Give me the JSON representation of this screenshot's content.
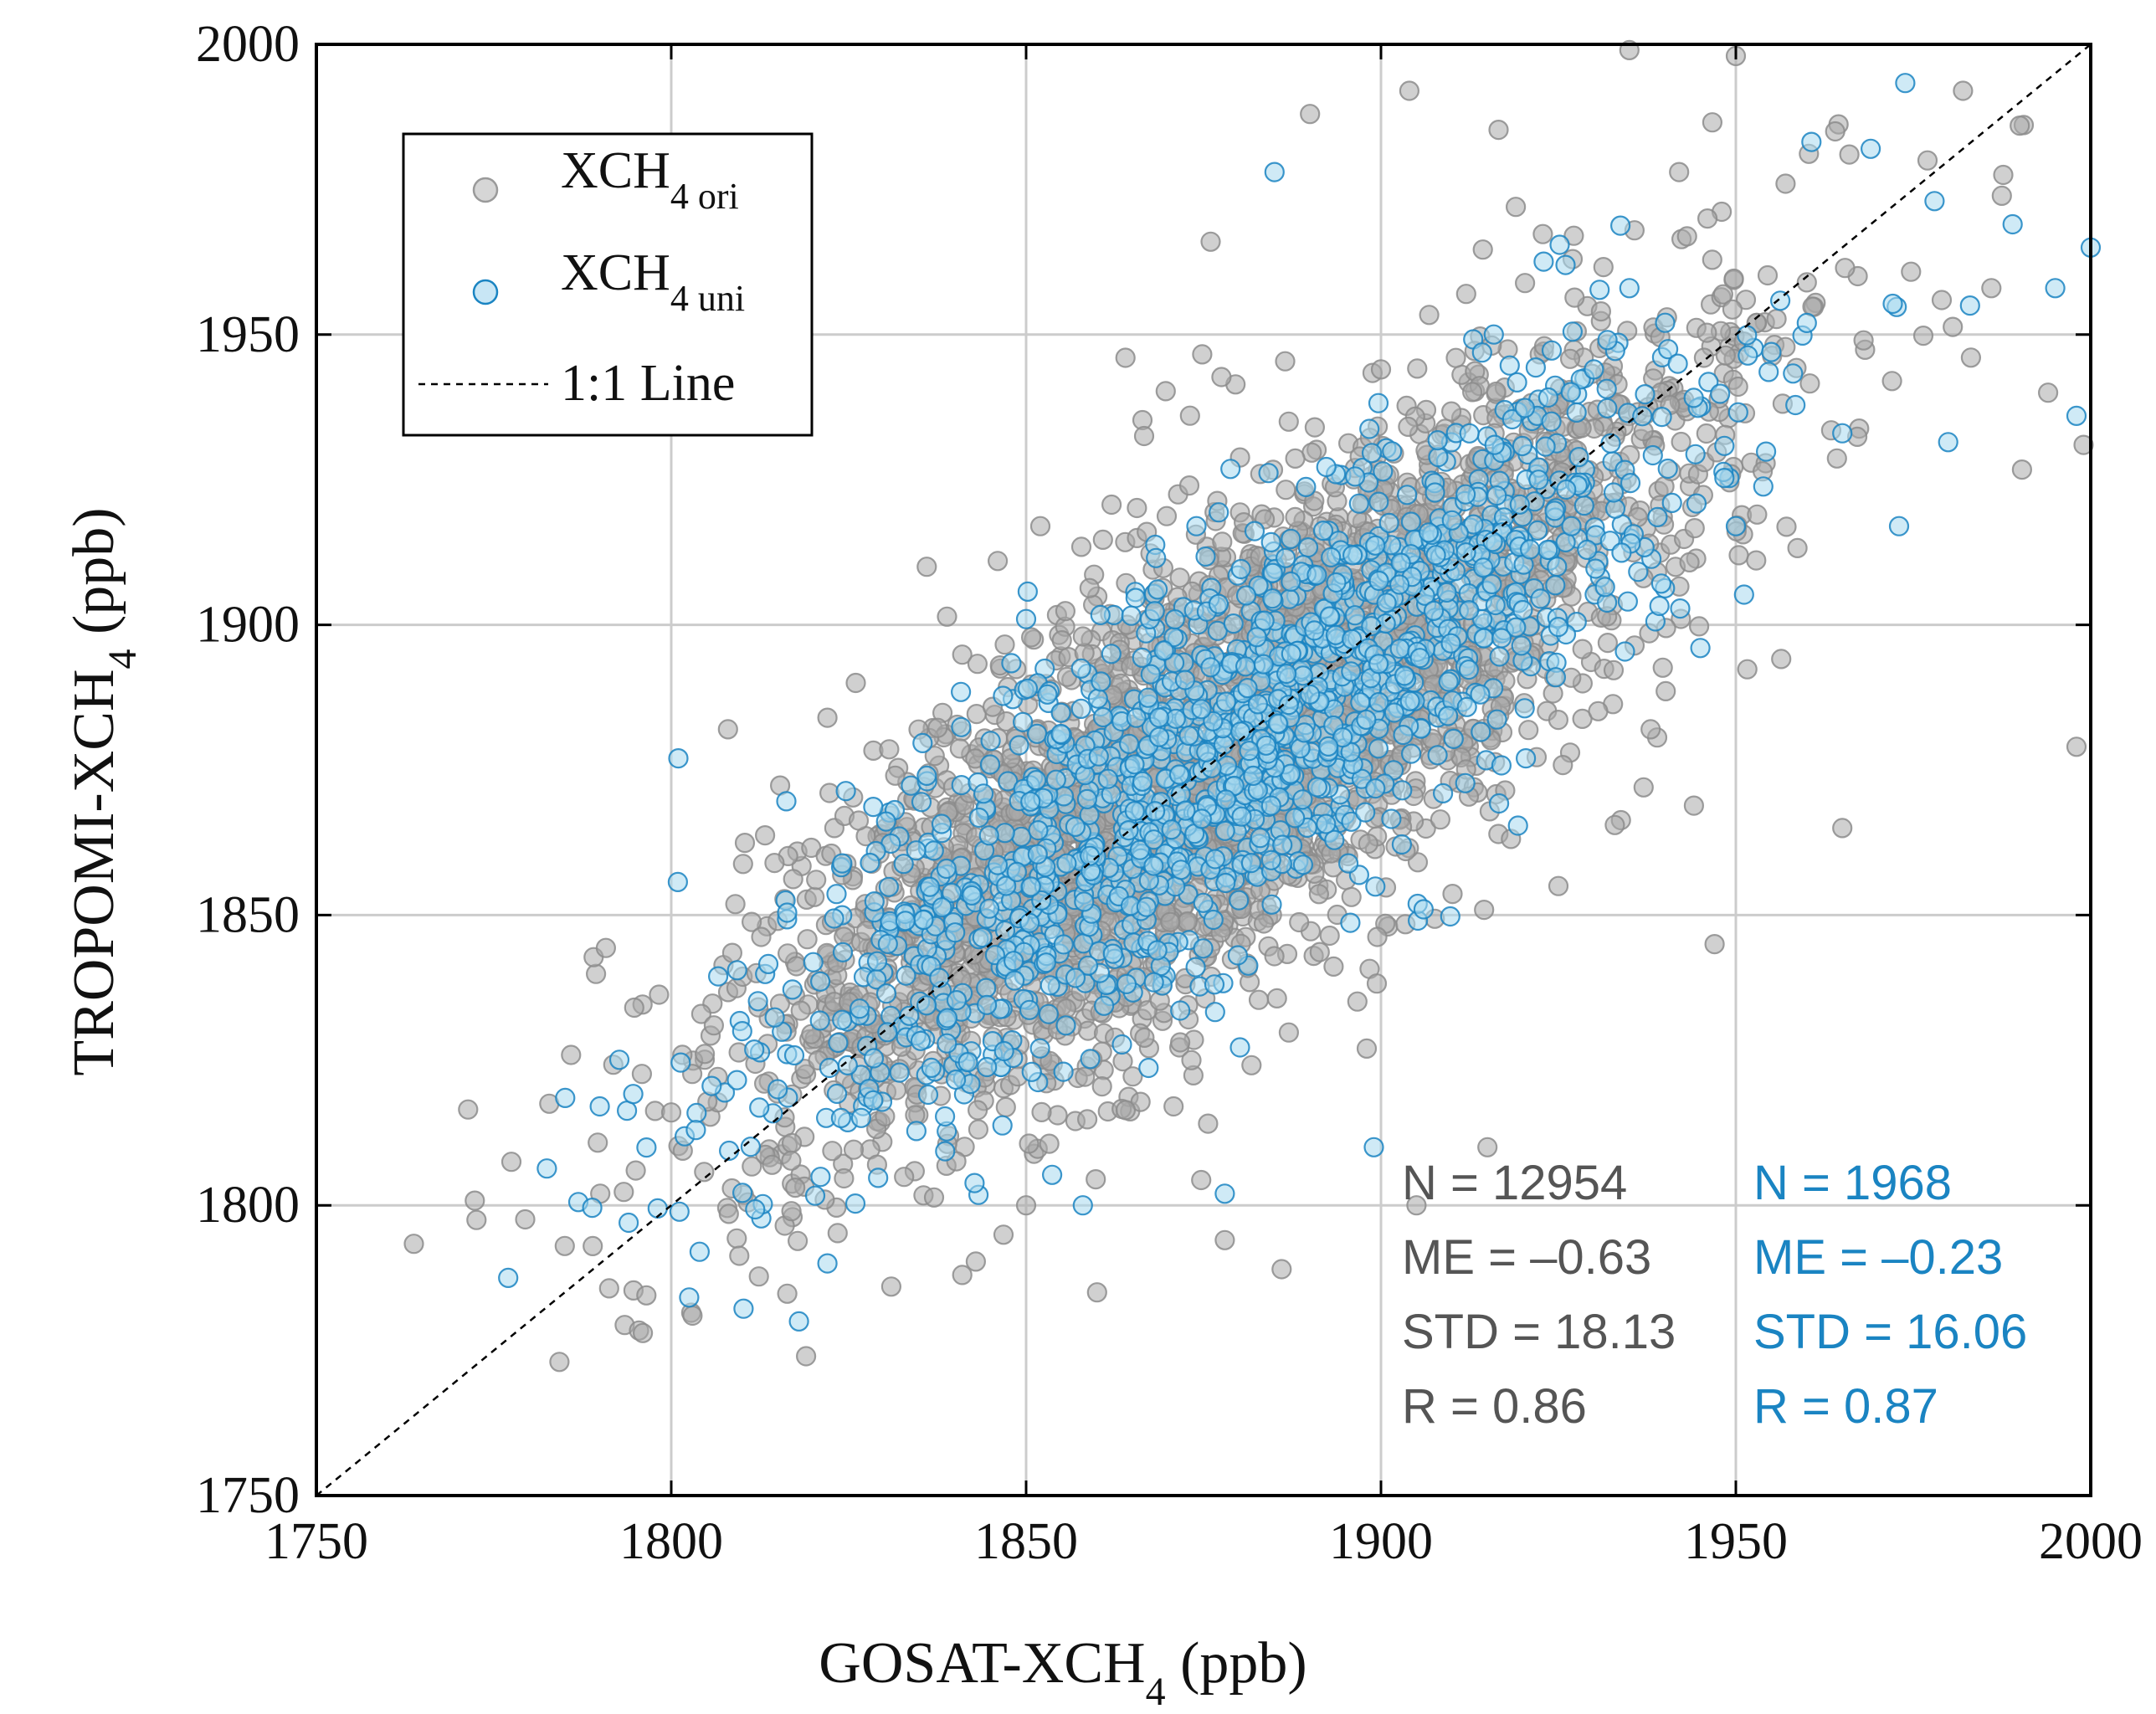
{
  "chart_data": {
    "type": "scatter",
    "xlabel": "GOSAT-XCH4 (ppb)",
    "ylabel": "TROPOMI-XCH4 (ppb)",
    "xlabel_main": "GOSAT-XCH",
    "xlabel_sub": "4",
    "xlabel_tail": " (ppb)",
    "ylabel_main": "TROPOMI-XCH",
    "ylabel_sub": "4",
    "ylabel_tail": " (ppb)",
    "xlim": [
      1750,
      2000
    ],
    "ylim": [
      1750,
      2000
    ],
    "xticks": [
      "1750",
      "1800",
      "1850",
      "1900",
      "1950",
      "2000"
    ],
    "yticks": [
      "1750",
      "1800",
      "1850",
      "1900",
      "1950",
      "2000"
    ],
    "grid": true,
    "legend_position": "top-left",
    "series": [
      {
        "name": "XCH4 ori",
        "name_main": "XCH",
        "name_sub": "4 ori",
        "color": "#a9a9a9",
        "edge_color": "#8c8c8c",
        "n_points_shown": 12954,
        "sample_points": [
          [
            1785,
            1793
          ],
          [
            1790,
            1802
          ],
          [
            1795,
            1806
          ],
          [
            1796,
            1778
          ],
          [
            1800,
            1816
          ],
          [
            1803,
            1781
          ],
          [
            1806,
            1831
          ],
          [
            1808,
            1882
          ],
          [
            1812,
            1840
          ],
          [
            1815,
            1849
          ],
          [
            1819,
            1774
          ],
          [
            1822,
            1884
          ],
          [
            1826,
            1890
          ],
          [
            1829,
            1807
          ],
          [
            1833,
            1866
          ],
          [
            1836,
            1910
          ],
          [
            1839,
            1858
          ],
          [
            1842,
            1871
          ],
          [
            1846,
            1911
          ],
          [
            1849,
            1864
          ],
          [
            1852,
            1917
          ],
          [
            1855,
            1885
          ],
          [
            1858,
            1898
          ],
          [
            1861,
            1893
          ],
          [
            1864,
            1946
          ],
          [
            1867,
            1916
          ],
          [
            1870,
            1876
          ],
          [
            1873,
            1924
          ],
          [
            1876,
            1966
          ],
          [
            1879,
            1892
          ],
          [
            1883,
            1926
          ],
          [
            1887,
            1935
          ],
          [
            1890,
            1988
          ],
          [
            1893,
            1901
          ],
          [
            1897,
            1929
          ],
          [
            1900,
            1944
          ],
          [
            1904,
            1992
          ],
          [
            1908,
            1918
          ],
          [
            1912,
            1957
          ],
          [
            1916,
            1933
          ],
          [
            1919,
            1972
          ],
          [
            1923,
            1948
          ],
          [
            1927,
            1963
          ],
          [
            1931,
            1954
          ],
          [
            1935,
            1999
          ],
          [
            1938,
            1882
          ],
          [
            1942,
            1978
          ],
          [
            1946,
            1970
          ],
          [
            1950,
            1998
          ],
          [
            1953,
            1919
          ],
          [
            1957,
            1976
          ],
          [
            1960,
            1959
          ],
          [
            1964,
            1985
          ],
          [
            1968,
            1949
          ],
          [
            1972,
            1942
          ],
          [
            1977,
            1980
          ],
          [
            1982,
            1992
          ],
          [
            1986,
            1958
          ],
          [
            1990,
            1986
          ],
          [
            1994,
            1940
          ],
          [
            1998,
            1879
          ],
          [
            1999,
            1931
          ],
          [
            1965,
            1865
          ],
          [
            1947,
            1845
          ],
          [
            1937,
            1872
          ],
          [
            1925,
            1855
          ],
          [
            1915,
            1810
          ],
          [
            1905,
            1800
          ],
          [
            1898,
            1827
          ],
          [
            1886,
            1789
          ],
          [
            1878,
            1794
          ],
          [
            1860,
            1785
          ],
          [
            1850,
            1800
          ],
          [
            1841,
            1788
          ],
          [
            1831,
            1786
          ],
          [
            1825,
            1835
          ]
        ]
      },
      {
        "name": "XCH4 uni",
        "name_main": "XCH",
        "name_sub": "4 uni",
        "color": "#a8d8ee",
        "edge_color": "#1a84c2",
        "n_points_shown": 1968,
        "sample_points": [
          [
            1794,
            1797
          ],
          [
            1801,
            1877
          ],
          [
            1804,
            1792
          ],
          [
            1810,
            1830
          ],
          [
            1815,
            1820
          ],
          [
            1818,
            1780
          ],
          [
            1822,
            1790
          ],
          [
            1828,
            1859
          ],
          [
            1833,
            1849
          ],
          [
            1836,
            1874
          ],
          [
            1840,
            1847
          ],
          [
            1845,
            1880
          ],
          [
            1850,
            1901
          ],
          [
            1853,
            1888
          ],
          [
            1858,
            1800
          ],
          [
            1862,
            1895
          ],
          [
            1868,
            1863
          ],
          [
            1874,
            1917
          ],
          [
            1878,
            1802
          ],
          [
            1882,
            1874
          ],
          [
            1885,
            1978
          ],
          [
            1890,
            1888
          ],
          [
            1896,
            1912
          ],
          [
            1899,
            1810
          ],
          [
            1906,
            1851
          ],
          [
            1910,
            1918
          ],
          [
            1916,
            1931
          ],
          [
            1921,
            1913
          ],
          [
            1926,
            1962
          ],
          [
            1930,
            1944
          ],
          [
            1935,
            1958
          ],
          [
            1941,
            1921
          ],
          [
            1945,
            1896
          ],
          [
            1950,
            1917
          ],
          [
            1955,
            1947
          ],
          [
            1960,
            1952
          ],
          [
            1965,
            1933
          ],
          [
            1969,
            1982
          ],
          [
            1973,
            1917
          ],
          [
            1978,
            1973
          ],
          [
            1983,
            1955
          ],
          [
            1989,
            1969
          ],
          [
            1995,
            1958
          ],
          [
            1998,
            1936
          ],
          [
            2000,
            1965
          ]
        ]
      }
    ],
    "reference_line": {
      "label": "1:1 Line",
      "from": [
        1750,
        1750
      ],
      "to": [
        2000,
        2000
      ]
    },
    "annotations": {
      "ori": [
        "N = 12954",
        "ME = –0.63",
        "STD = 18.13",
        "R = 0.86"
      ],
      "uni": [
        "N = 1968",
        "ME = –0.23",
        "STD = 16.06",
        "R = 0.87"
      ]
    }
  },
  "colors": {
    "ori_text": "#555555",
    "uni_text": "#1a84c2",
    "grid": "#cccccc",
    "frame": "#000000"
  }
}
